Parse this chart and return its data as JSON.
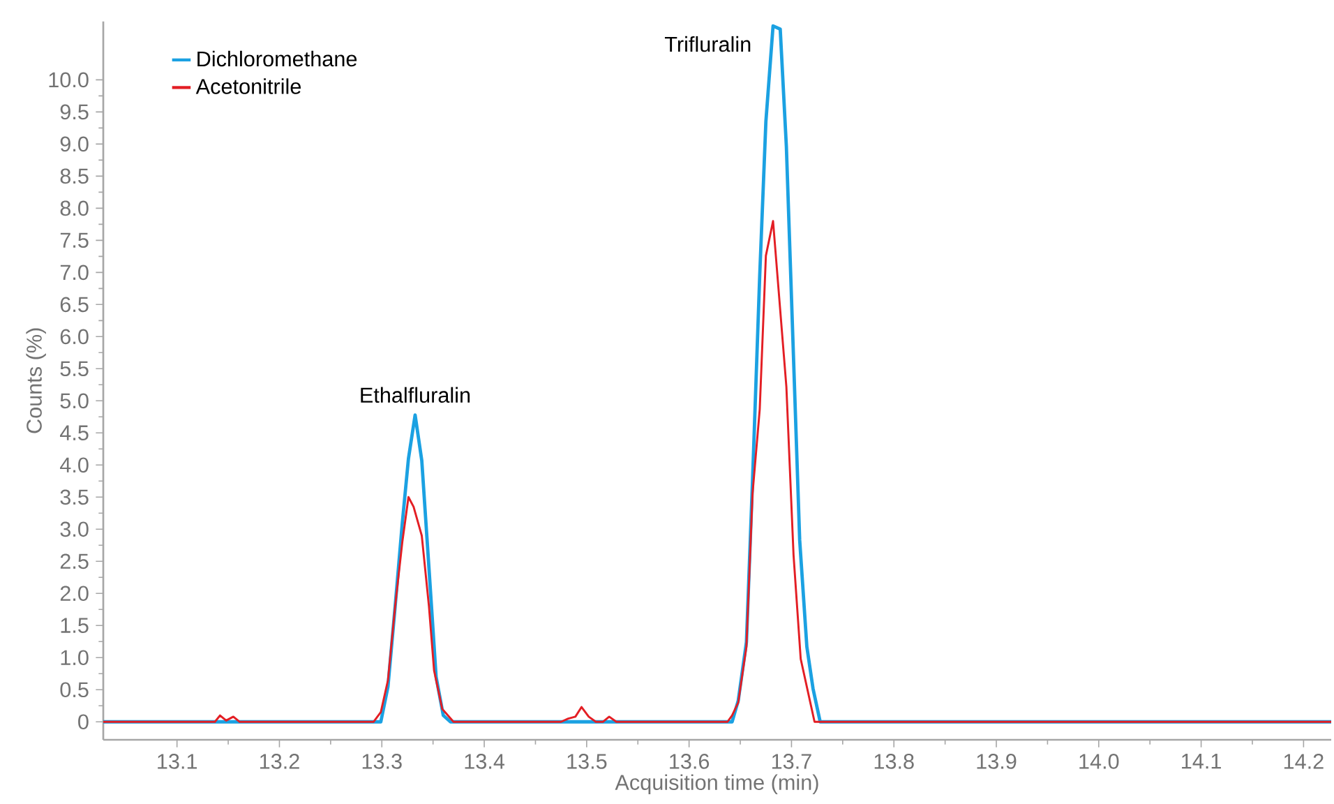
{
  "chart_data": {
    "type": "line",
    "xlabel": "Acquisition time (min)",
    "ylabel": "Counts (%)",
    "xlim": [
      13.028,
      14.227
    ],
    "ylim": [
      -0.28,
      10.91
    ],
    "xticks": [
      13.1,
      13.2,
      13.3,
      13.4,
      13.5,
      13.6,
      13.7,
      13.8,
      13.9,
      {
        "value": 14.0,
        "label": "14.0"
      },
      14.1,
      14.2
    ],
    "yticks": [
      0,
      0.5,
      {
        "value": 1,
        "label": "1.0"
      },
      1.5,
      {
        "value": 2,
        "label": "2.0"
      },
      2.5,
      {
        "value": 3,
        "label": "3.0"
      },
      3.5,
      {
        "value": 4,
        "label": "4.0"
      },
      4.5,
      {
        "value": 5,
        "label": "5.0"
      },
      5.5,
      {
        "value": 6,
        "label": "6.0"
      },
      6.5,
      {
        "value": 7,
        "label": "7.0"
      },
      7.5,
      {
        "value": 8,
        "label": "8.0"
      },
      8.5,
      {
        "value": 9,
        "label": "9.0"
      },
      9.5,
      {
        "value": 10,
        "label": "10.0"
      }
    ],
    "legend": "top left",
    "grid": false,
    "marker": "none",
    "line_style": "solid",
    "annotations": [
      {
        "text": "Ethalfluralin",
        "x": 13.3325,
        "y": 4.78
      },
      {
        "text": "Trifluralin",
        "x": 13.682,
        "y": 10.84
      }
    ],
    "series": [
      {
        "name": "Dichloromethane",
        "color": "#1ba1e2",
        "x": [
          13.028,
          13.299,
          13.306,
          13.313,
          13.32,
          13.326,
          13.3325,
          13.339,
          13.346,
          13.353,
          13.36,
          13.367,
          13.642,
          13.648,
          13.656,
          13.662,
          13.669,
          13.675,
          13.682,
          13.689,
          13.695,
          13.708,
          13.715,
          13.721,
          13.728,
          14.227
        ],
        "values": [
          0,
          0,
          0.55,
          1.8,
          3.1,
          4.1,
          4.78,
          4.07,
          2.4,
          0.7,
          0.1,
          0,
          0,
          0.33,
          1.24,
          3.78,
          6.96,
          9.35,
          10.84,
          10.79,
          8.96,
          2.83,
          1.17,
          0.52,
          0,
          0
        ]
      },
      {
        "name": "Acetonitrile",
        "color": "#e31e24",
        "x": [
          13.028,
          13.137,
          13.142,
          13.148,
          13.155,
          13.161,
          13.292,
          13.299,
          13.306,
          13.313,
          13.32,
          13.326,
          13.331,
          13.339,
          13.346,
          13.351,
          13.359,
          13.37,
          13.475,
          13.482,
          13.489,
          13.495,
          13.502,
          13.509,
          13.516,
          13.522,
          13.529,
          13.6375,
          13.642,
          13.648,
          13.656,
          13.662,
          13.669,
          13.675,
          13.682,
          13.695,
          13.702,
          13.709,
          13.7225,
          14.227
        ],
        "values": [
          0,
          0,
          0.1,
          0.02,
          0.08,
          0,
          0,
          0.15,
          0.65,
          1.8,
          2.8,
          3.5,
          3.35,
          2.9,
          1.8,
          0.8,
          0.2,
          0,
          0,
          0.05,
          0.08,
          0.23,
          0.08,
          0,
          0,
          0.08,
          0,
          0,
          0.1,
          0.3,
          1.17,
          3.56,
          4.87,
          7.26,
          7.8,
          5.22,
          2.6,
          0.98,
          0,
          0
        ]
      }
    ]
  }
}
